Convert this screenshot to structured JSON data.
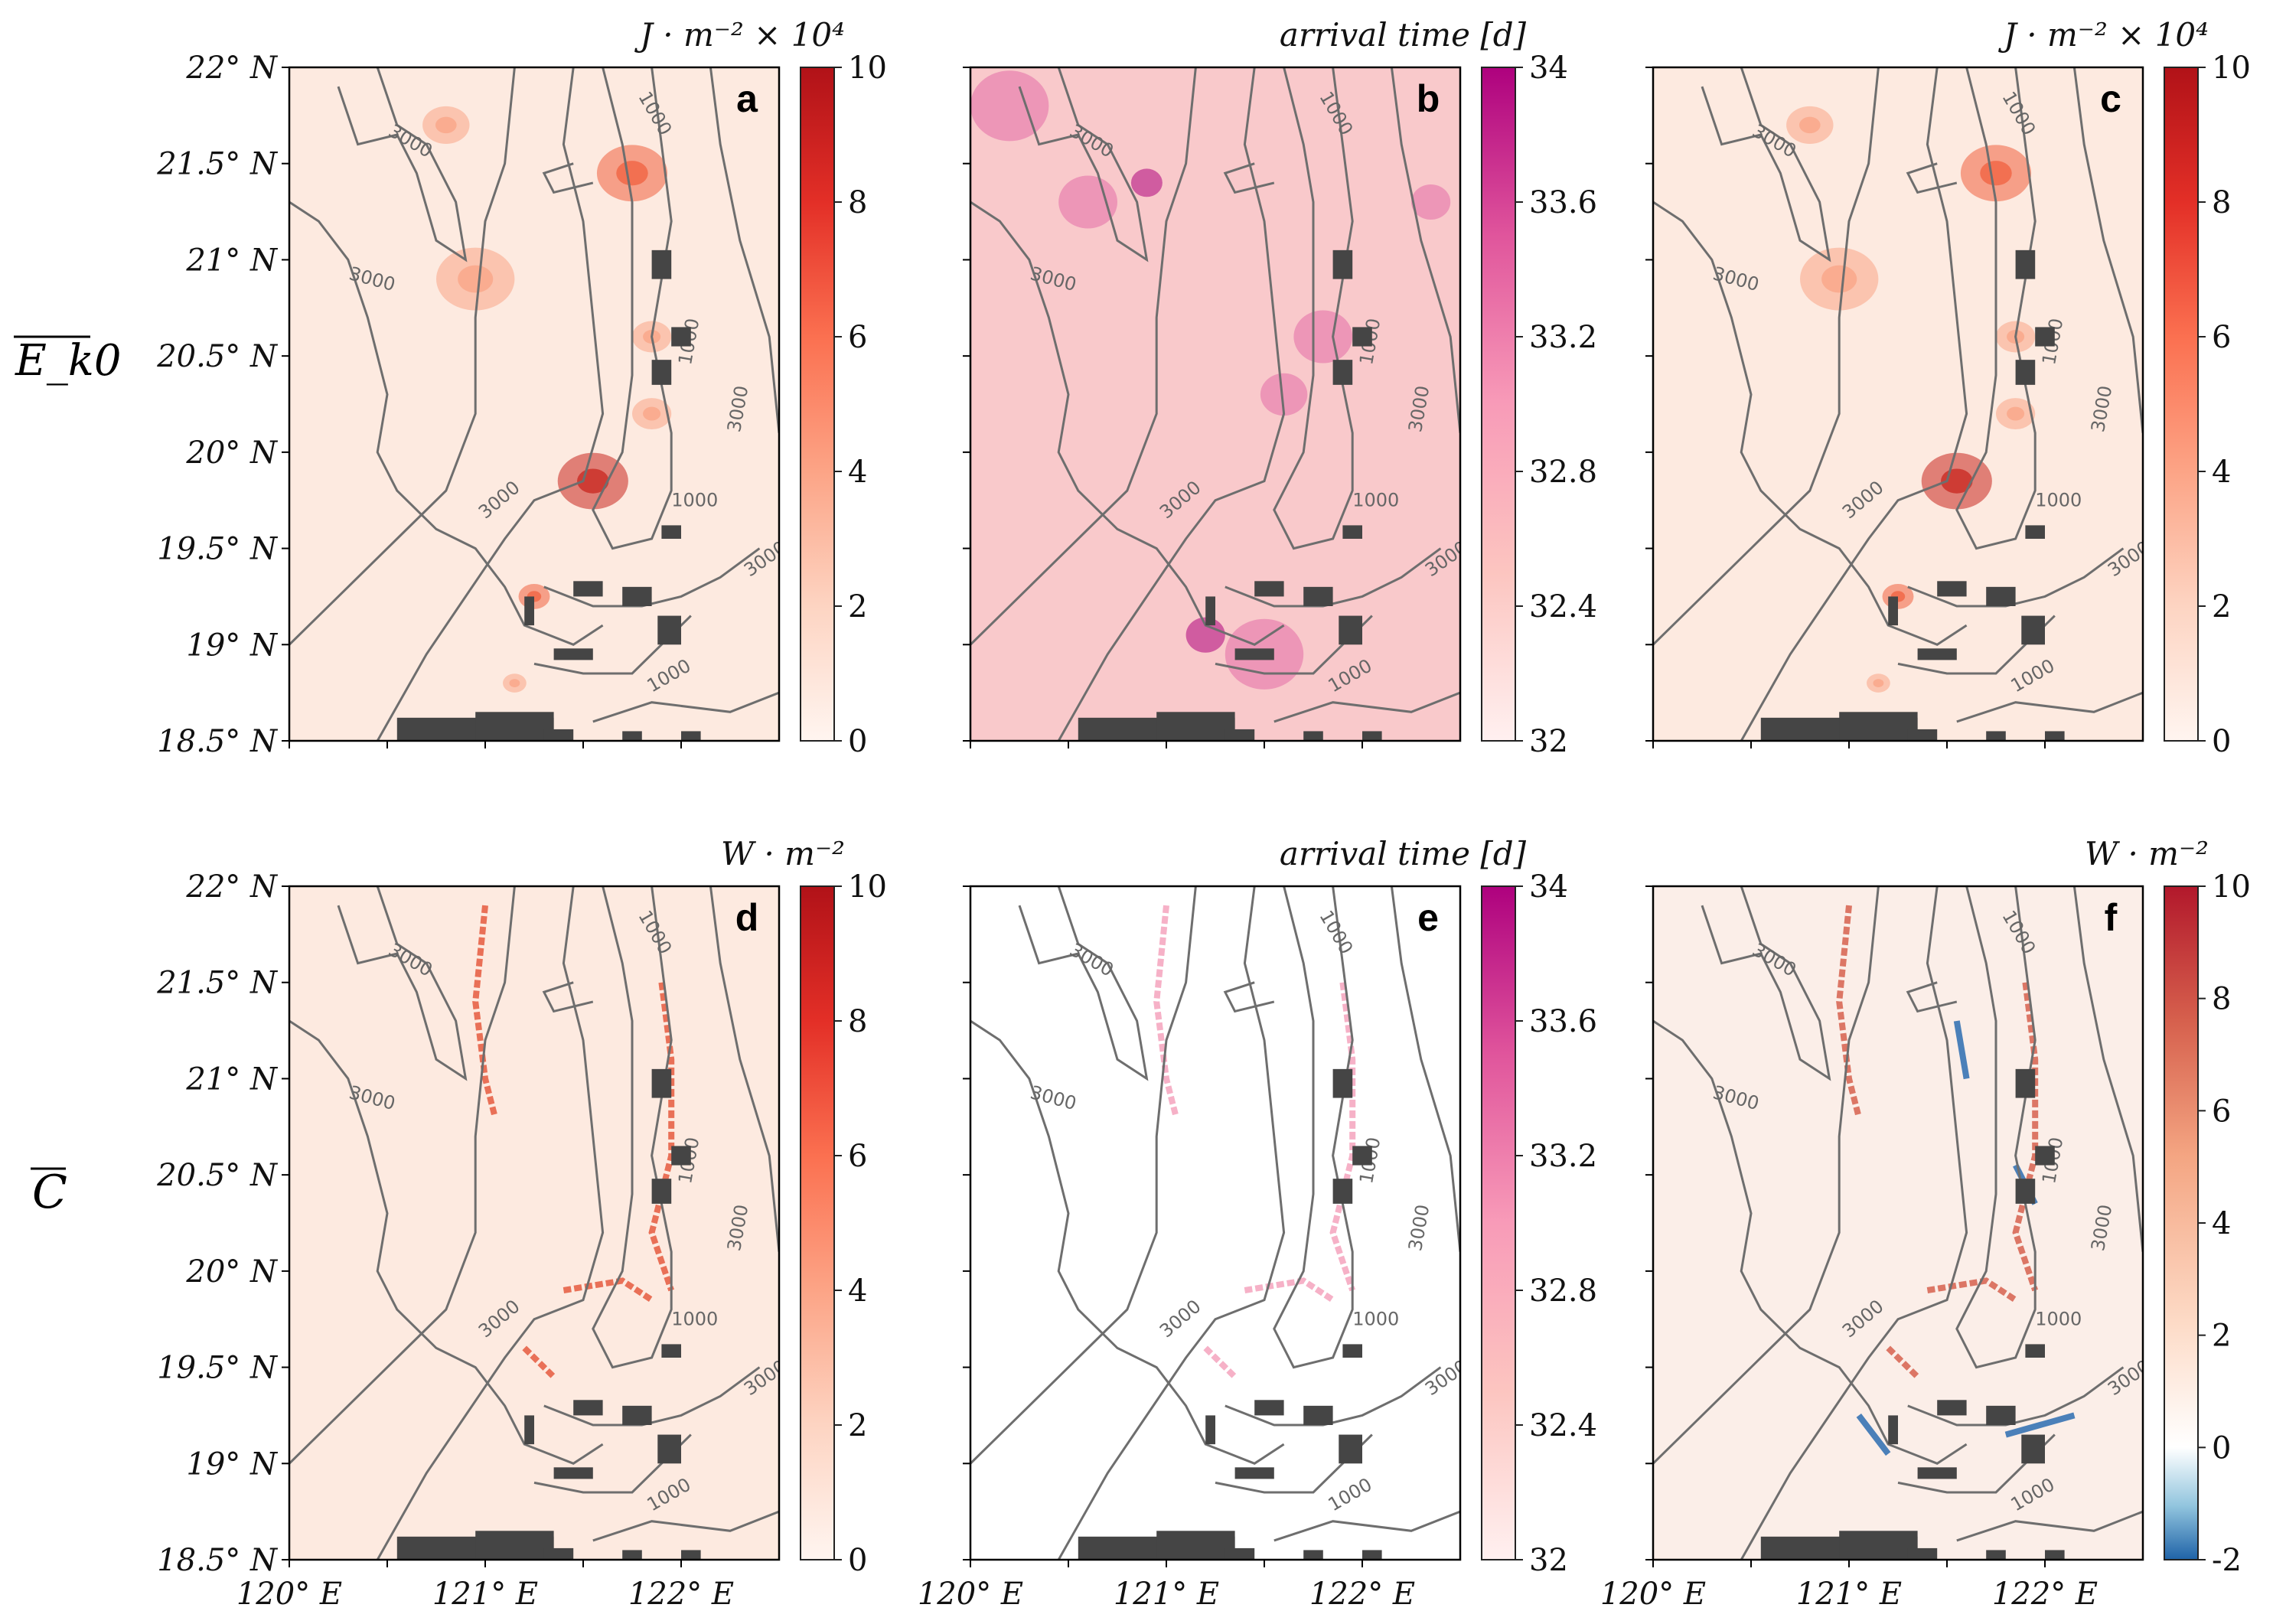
{
  "figure": {
    "row_labels": [
      "E_k0",
      "C"
    ],
    "x_ticks": [
      "120° E",
      "121° E",
      "122° E"
    ],
    "y_ticks": [
      "22° N",
      "21.5° N",
      "21° N",
      "20.5° N",
      "20° N",
      "19.5° N",
      "19° N",
      "18.5° N"
    ]
  },
  "chart_data": [
    {
      "panel": "a",
      "type": "heatmap",
      "colormap": "Reds",
      "unit": "J · m⁻² × 10⁴",
      "clim": [
        0,
        10
      ],
      "cbar_ticks": [
        "0",
        "2",
        "4",
        "6",
        "8",
        "10"
      ],
      "xlim": [
        120,
        122.5
      ],
      "ylim": [
        18.5,
        22
      ],
      "xticks_shown": false,
      "yticks_shown": true,
      "contours": [
        "1000",
        "3000"
      ]
    },
    {
      "panel": "b",
      "type": "heatmap",
      "colormap": "RdPu",
      "unit": "arrival time [d]",
      "clim": [
        32,
        34
      ],
      "cbar_ticks": [
        "32",
        "32.4",
        "32.8",
        "33.2",
        "33.6",
        "34"
      ],
      "xlim": [
        120,
        122.5
      ],
      "ylim": [
        18.5,
        22
      ],
      "xticks_shown": false,
      "yticks_shown": false,
      "contours": [
        "1000",
        "3000"
      ]
    },
    {
      "panel": "c",
      "type": "heatmap",
      "colormap": "Reds",
      "unit": "J · m⁻² × 10⁴",
      "clim": [
        0,
        10
      ],
      "cbar_ticks": [
        "0",
        "2",
        "4",
        "6",
        "8",
        "10"
      ],
      "xlim": [
        120,
        122.5
      ],
      "ylim": [
        18.5,
        22
      ],
      "xticks_shown": false,
      "yticks_shown": false,
      "contours": [
        "1000",
        "3000"
      ]
    },
    {
      "panel": "d",
      "type": "heatmap",
      "colormap": "Reds",
      "unit": "W · m⁻²",
      "clim": [
        0,
        10
      ],
      "cbar_ticks": [
        "0",
        "2",
        "4",
        "6",
        "8",
        "10"
      ],
      "xlim": [
        120,
        122.5
      ],
      "ylim": [
        18.5,
        22
      ],
      "xticks_shown": true,
      "yticks_shown": true,
      "contours": [
        "1000",
        "3000"
      ]
    },
    {
      "panel": "e",
      "type": "heatmap",
      "colormap": "RdPu",
      "unit": "arrival time [d]",
      "clim": [
        32,
        34
      ],
      "cbar_ticks": [
        "32",
        "32.4",
        "32.8",
        "33.2",
        "33.6",
        "34"
      ],
      "xlim": [
        120,
        122.5
      ],
      "ylim": [
        18.5,
        22
      ],
      "xticks_shown": true,
      "yticks_shown": false,
      "contours": [
        "1000",
        "3000"
      ]
    },
    {
      "panel": "f",
      "type": "heatmap",
      "colormap": "RdBu_r",
      "unit": "W · m⁻²",
      "clim": [
        -2,
        10
      ],
      "cbar_ticks": [
        "-2",
        "0",
        "2",
        "4",
        "6",
        "8",
        "10"
      ],
      "xlim": [
        120,
        122.5
      ],
      "ylim": [
        18.5,
        22
      ],
      "xticks_shown": true,
      "yticks_shown": false,
      "contours": [
        "1000",
        "3000"
      ]
    }
  ]
}
